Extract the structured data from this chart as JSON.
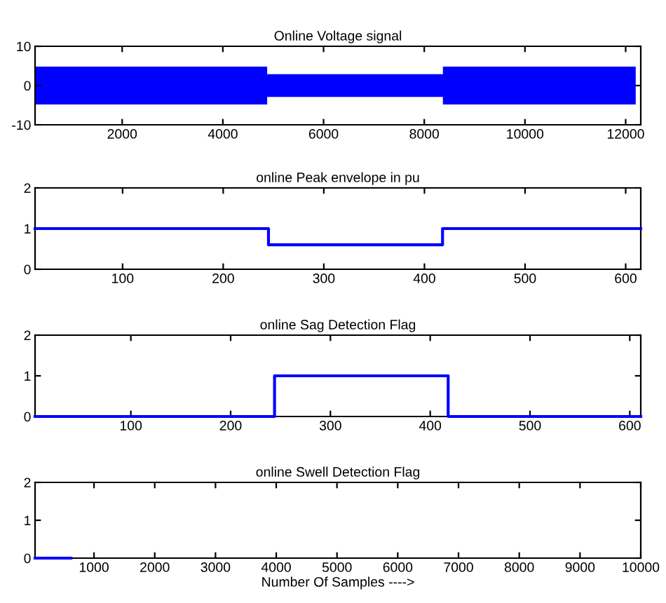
{
  "chart_data": [
    {
      "type": "line",
      "title": "Online Voltage signal",
      "xlim": [
        270,
        12300
      ],
      "xticks": [
        2000,
        4000,
        6000,
        8000,
        10000,
        12000
      ],
      "ylim": [
        -10,
        10
      ],
      "yticks": [
        -10,
        0,
        10
      ],
      "grid": false,
      "marker": "none",
      "series": [
        {
          "type": "area",
          "color": "#0000ff",
          "x": [
            270,
            4880,
            4880,
            8370,
            8370,
            12200
          ],
          "values": [
            4.8,
            4.8,
            2.9,
            2.9,
            4.8,
            4.8
          ]
        },
        {
          "type": "area",
          "color": "#0000ff",
          "x": [
            270,
            4880,
            4880,
            8370,
            8370,
            12200
          ],
          "values": [
            -4.8,
            -4.8,
            -2.9,
            -2.9,
            -4.8,
            -4.8
          ]
        }
      ]
    },
    {
      "type": "line",
      "title": "online Peak envelope in pu",
      "xlim": [
        13,
        615
      ],
      "xticks": [
        100,
        200,
        300,
        400,
        500,
        600
      ],
      "ylim": [
        0,
        2
      ],
      "yticks": [
        0,
        1,
        2
      ],
      "grid": false,
      "marker": "none",
      "series": [
        {
          "color": "#0000ff",
          "x": [
            13,
            245,
            245,
            418,
            418,
            615
          ],
          "values": [
            1,
            1,
            0.6,
            0.6,
            1,
            1
          ]
        }
      ]
    },
    {
      "type": "line",
      "title": "online Sag Detection Flag",
      "xlim": [
        4,
        611
      ],
      "xticks": [
        100,
        200,
        300,
        400,
        500,
        600
      ],
      "ylim": [
        0,
        2
      ],
      "yticks": [
        0,
        1,
        2
      ],
      "grid": false,
      "marker": "none",
      "series": [
        {
          "color": "#0000ff",
          "x": [
            4,
            244,
            244,
            418,
            418,
            611
          ],
          "values": [
            0,
            0,
            1,
            1,
            0,
            0
          ]
        }
      ]
    },
    {
      "type": "line",
      "title": "online Swell Detection Flag",
      "xlabel": "Number Of Samples ---->",
      "xlim": [
        30,
        10000
      ],
      "xticks": [
        1000,
        2000,
        3000,
        4000,
        5000,
        6000,
        7000,
        8000,
        9000,
        10000
      ],
      "ylim": [
        0,
        2
      ],
      "yticks": [
        0,
        1,
        2
      ],
      "grid": false,
      "marker": "none",
      "series": [
        {
          "color": "#0000ff",
          "x": [
            30,
            620
          ],
          "values": [
            0,
            0
          ]
        }
      ]
    }
  ]
}
